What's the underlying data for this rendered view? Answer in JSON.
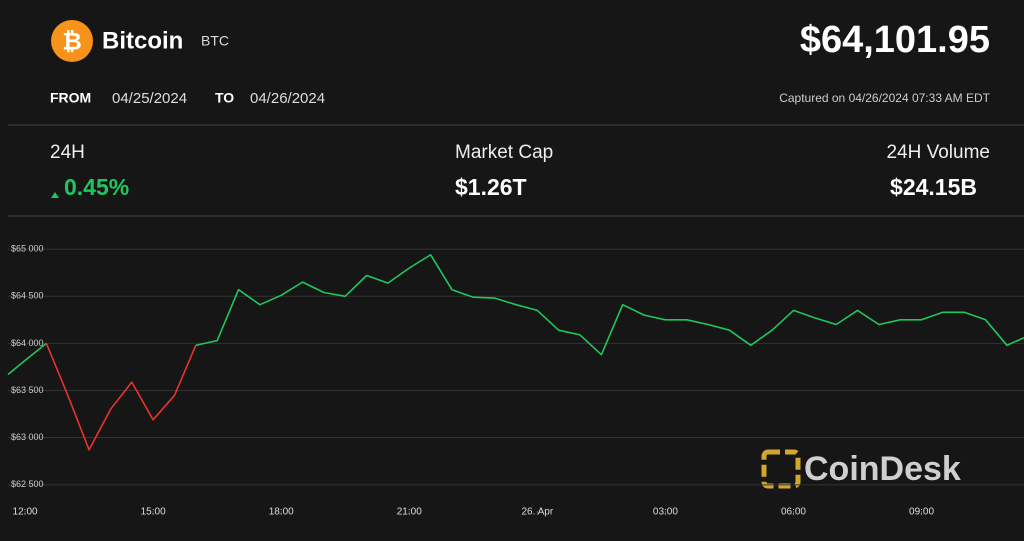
{
  "header": {
    "coin_name": "Bitcoin",
    "ticker": "BTC",
    "price": "$64,101.95",
    "from_label": "FROM",
    "from_date": "04/25/2024",
    "to_label": "TO",
    "to_date": "04/26/2024",
    "captured": "Captured on 04/26/2024 07:33 AM EDT"
  },
  "stats": [
    {
      "label": "24H",
      "value": "0.45%"
    },
    {
      "label": "Market Cap",
      "value": "$1.26T"
    },
    {
      "label": "24H Volume",
      "value": "$24.15B"
    }
  ],
  "watermark": "CoinDesk",
  "chart_data": {
    "type": "line",
    "x": [
      -0.4,
      0,
      0.5,
      1.0,
      1.5,
      2.0,
      2.5,
      3.0,
      3.5,
      4.0,
      4.5,
      5.0,
      5.5,
      6.0,
      6.5,
      7.0,
      7.5,
      8.0,
      8.5,
      9.0,
      9.5,
      10.0,
      10.5,
      11.0,
      11.5,
      12.0,
      12.5,
      13.0,
      13.5,
      14.0,
      14.5,
      15.0,
      15.5,
      16.0,
      16.5,
      17.0,
      17.5,
      18.0,
      18.5,
      19.0,
      19.5,
      20.0,
      20.5,
      21.0,
      21.5,
      22.0,
      22.5,
      23.0,
      23.4
    ],
    "series": [
      {
        "color": "#21c55d",
        "values": [
          63670,
          63820,
          64000,
          null,
          null,
          null,
          null,
          null,
          null,
          63980,
          64030,
          64570,
          64410,
          64510,
          64650,
          64540,
          64500,
          64720,
          64640,
          64800,
          64940,
          64570,
          64490,
          64480,
          64410,
          64350,
          64140,
          64090,
          63880,
          64410,
          64300,
          64250,
          64250,
          64200,
          64140,
          63980,
          64140,
          64350,
          64270,
          64200,
          64350,
          64200,
          64250,
          64250,
          64330,
          64330,
          64250,
          63980,
          64060
        ]
      },
      {
        "color": "#e5342c",
        "values": [
          null,
          null,
          64000,
          63450,
          62870,
          63300,
          63590,
          63190,
          63450,
          63980,
          null,
          null,
          null,
          null,
          null,
          null,
          null,
          null,
          null,
          null,
          null,
          null,
          null,
          null,
          null,
          null,
          null,
          null,
          null,
          null,
          null,
          null,
          null,
          null,
          null,
          null,
          null,
          null,
          null,
          null,
          null,
          null,
          null,
          null,
          null,
          null,
          null,
          null,
          null
        ]
      }
    ],
    "xlim": [
      -0.4,
      23.4
    ],
    "xticks": [
      {
        "value": 0,
        "label": "12:00"
      },
      {
        "value": 3,
        "label": "15:00"
      },
      {
        "value": 6,
        "label": "18:00"
      },
      {
        "value": 9,
        "label": "21:00"
      },
      {
        "value": 12,
        "label": "26. Apr"
      },
      {
        "value": 15,
        "label": "03:00"
      },
      {
        "value": 18,
        "label": "06:00"
      },
      {
        "value": 21,
        "label": "09:00"
      }
    ],
    "ylim": [
      62180,
      65330
    ],
    "yticks": [
      {
        "value": 62500,
        "label": "$62 500"
      },
      {
        "value": 63000,
        "label": "$63 000"
      },
      {
        "value": 63500,
        "label": "$63 500"
      },
      {
        "value": 64000,
        "label": "$64 000"
      },
      {
        "value": 64500,
        "label": "$64 500"
      },
      {
        "value": 65000,
        "label": "$65 000"
      }
    ],
    "grid": true
  }
}
